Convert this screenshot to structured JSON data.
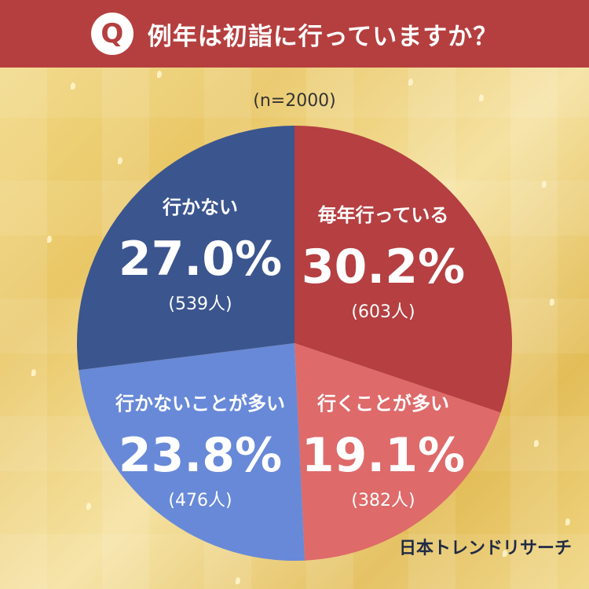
{
  "header": {
    "badge": "Q",
    "question": "例年は初詣に行っていますか？"
  },
  "sample_note": "(n=2000)",
  "brand": "日本トレンドリサーチ",
  "chart_data": {
    "type": "pie",
    "slices": [
      {
        "label": "毎年行っている",
        "value": 30.2,
        "value_label": "30.2%",
        "count_label": "(603人)",
        "color": "#b53f41"
      },
      {
        "label": "行くことが多い",
        "value": 19.1,
        "value_label": "19.1%",
        "count_label": "(382人)",
        "color": "#de6a6a"
      },
      {
        "label": "行かないことが多い",
        "value": 23.8,
        "value_label": "23.8%",
        "count_label": "(476人)",
        "color": "#6889d8"
      },
      {
        "label": "行かない",
        "value": 27.0,
        "value_label": "27.0%",
        "count_label": "(539人)",
        "color": "#3b558f"
      }
    ]
  }
}
